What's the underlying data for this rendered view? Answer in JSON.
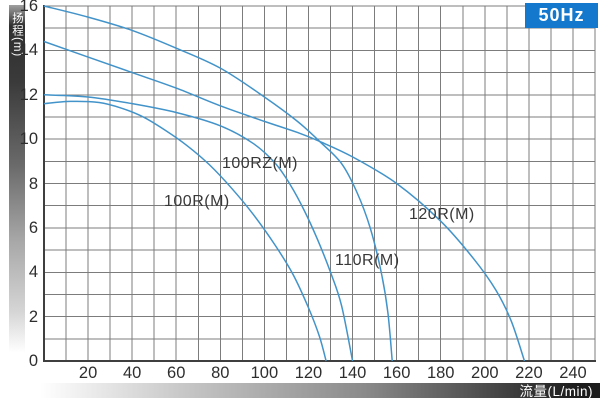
{
  "header": {
    "frequency_badge": "50Hz"
  },
  "axes": {
    "y_label": "扬程(m)",
    "x_label": "流量(L/min)",
    "x_ticks": [
      20,
      40,
      60,
      80,
      100,
      120,
      140,
      160,
      180,
      200,
      220,
      240
    ],
    "y_ticks": [
      0,
      2,
      4,
      6,
      8,
      10,
      12,
      14,
      16
    ]
  },
  "chart_data": {
    "type": "line",
    "title": "",
    "xlabel": "流量(L/min)",
    "ylabel": "扬程(m)",
    "xlim": [
      0,
      250
    ],
    "ylim": [
      0,
      16
    ],
    "x_grid_step": 10,
    "y_grid_step": 1,
    "grid": "on",
    "legend": "inline-labels",
    "frequency": "50Hz",
    "series": [
      {
        "name": "100R(M)",
        "points": [
          [
            0,
            11.6
          ],
          [
            12,
            11.7
          ],
          [
            25,
            11.65
          ],
          [
            35,
            11.4
          ],
          [
            45,
            11.0
          ],
          [
            55,
            10.4
          ],
          [
            65,
            9.7
          ],
          [
            75,
            8.85
          ],
          [
            85,
            7.8
          ],
          [
            95,
            6.6
          ],
          [
            105,
            5.2
          ],
          [
            113,
            3.9
          ],
          [
            120,
            2.4
          ],
          [
            125,
            1.1
          ],
          [
            128,
            0
          ]
        ]
      },
      {
        "name": "100RZ(M)",
        "points": [
          [
            0,
            12.0
          ],
          [
            20,
            11.9
          ],
          [
            40,
            11.6
          ],
          [
            60,
            11.2
          ],
          [
            80,
            10.6
          ],
          [
            95,
            9.8
          ],
          [
            105,
            8.9
          ],
          [
            112,
            7.9
          ],
          [
            118,
            6.8
          ],
          [
            124,
            5.5
          ],
          [
            130,
            4.0
          ],
          [
            135,
            2.5
          ],
          [
            140,
            0
          ]
        ]
      },
      {
        "name": "110R(M)",
        "points": [
          [
            0,
            16.0
          ],
          [
            20,
            15.5
          ],
          [
            40,
            14.9
          ],
          [
            60,
            14.1
          ],
          [
            80,
            13.2
          ],
          [
            100,
            11.9
          ],
          [
            115,
            10.8
          ],
          [
            125,
            9.9
          ],
          [
            135,
            8.9
          ],
          [
            142,
            7.6
          ],
          [
            148,
            6.0
          ],
          [
            153,
            4.0
          ],
          [
            156,
            2.2
          ],
          [
            158,
            0
          ]
        ]
      },
      {
        "name": "120R(M)",
        "points": [
          [
            0,
            14.4
          ],
          [
            20,
            13.7
          ],
          [
            40,
            13.0
          ],
          [
            60,
            12.3
          ],
          [
            80,
            11.5
          ],
          [
            100,
            10.8
          ],
          [
            115,
            10.3
          ],
          [
            125,
            9.9
          ],
          [
            140,
            9.2
          ],
          [
            160,
            8.0
          ],
          [
            180,
            6.3
          ],
          [
            195,
            4.6
          ],
          [
            205,
            3.2
          ],
          [
            212,
            1.8
          ],
          [
            218,
            0
          ]
        ]
      }
    ]
  },
  "colors": {
    "curve": "#4293c9",
    "grid": "#7c7c7c",
    "axis": "#3f3f3f",
    "badge_bg": "#1478cc",
    "badge_text": "#ffffff",
    "tick_text": "#2e2e2e",
    "label_text": "#383838"
  }
}
